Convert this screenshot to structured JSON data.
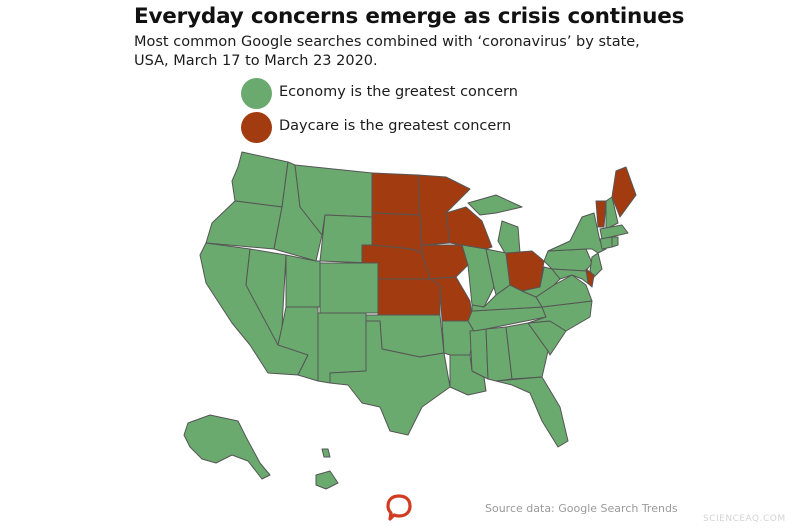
{
  "title": "Everyday concerns emerge as crisis continues",
  "subtitle": "Most common Google searches combined with ‘coronavirus’ by state, USA, March 17 to March 23 2020.",
  "legend": [
    {
      "key": "economy",
      "label": "Economy is the greatest concern",
      "color": "#6aaa6e"
    },
    {
      "key": "daycare",
      "label": "Daycare is the greatest concern",
      "color": "#a33b10"
    }
  ],
  "map": {
    "type": "choropleth",
    "region": "USA by state",
    "categories": [
      "economy",
      "daycare"
    ],
    "colors": {
      "economy": "#6aaa6e",
      "daycare": "#a33b10"
    },
    "daycare_states": [
      "ND",
      "SD",
      "NE",
      "KS",
      "MN",
      "IA",
      "WI",
      "MO",
      "OH",
      "VT",
      "ME",
      "DE"
    ],
    "economy_states": [
      "WA",
      "OR",
      "CA",
      "ID",
      "NV",
      "MT",
      "WY",
      "UT",
      "CO",
      "AZ",
      "NM",
      "TX",
      "OK",
      "AR",
      "LA",
      "MS",
      "AL",
      "TN",
      "KY",
      "IL",
      "IN",
      "MI",
      "GA",
      "FL",
      "SC",
      "NC",
      "VA",
      "WV",
      "PA",
      "NY",
      "NJ",
      "MD",
      "CT",
      "RI",
      "MA",
      "NH",
      "AK",
      "HI"
    ]
  },
  "source": "Source data: Google Search Trends",
  "logo_icon": "speech-bubble-logo-icon",
  "watermark": "SCIENCEAQ.COM"
}
